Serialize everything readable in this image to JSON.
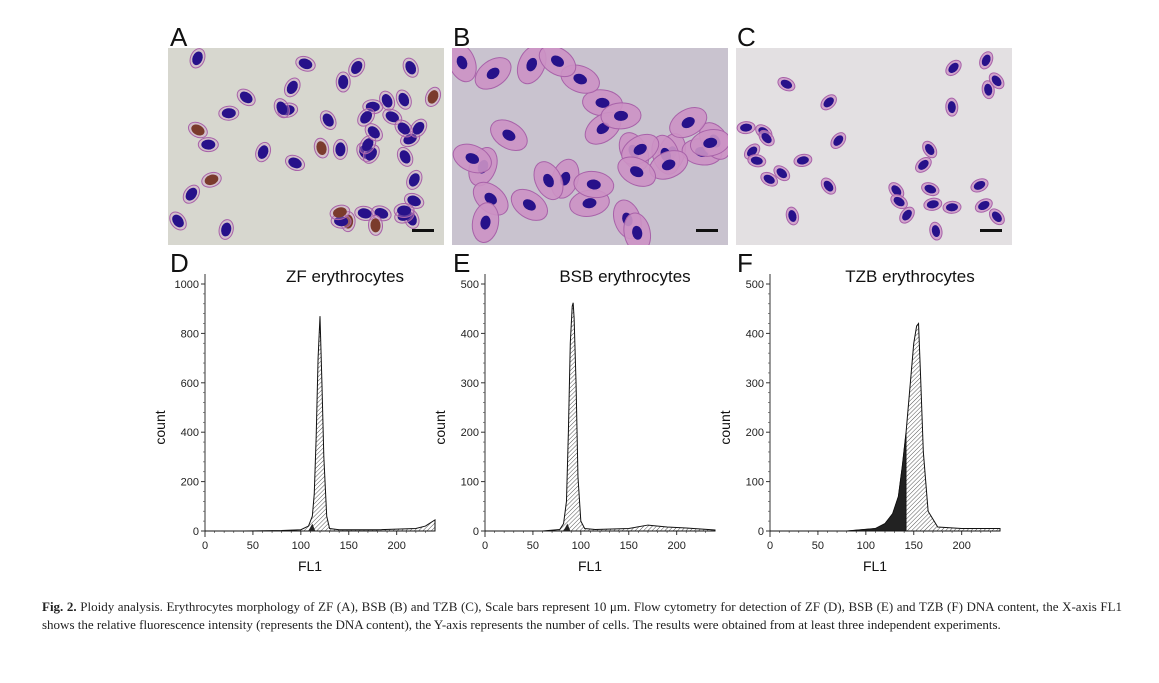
{
  "colors": {
    "bg_A": "#d7d7cf",
    "bg_B": "#c9c3cf",
    "bg_C": "#e3e0e2",
    "cell": "#a862a9",
    "cell_light": "#cc92c4",
    "nucleus": "#27118a",
    "nucleus_brown": "#7a3b2c",
    "hist_dark": "#222222"
  },
  "panels": [
    {
      "label": "A",
      "species": "ZF"
    },
    {
      "label": "B",
      "species": "BSB"
    },
    {
      "label": "C",
      "species": "TZB"
    }
  ],
  "chart_data": [
    {
      "type": "histogram",
      "panel": "D",
      "title": "ZF erythrocytes",
      "xlabel": "FL1",
      "ylabel": "count",
      "xlim": [
        0,
        240
      ],
      "ylim": [
        0,
        1000
      ],
      "xticks": [
        0,
        50,
        100,
        150,
        200
      ],
      "yticks": [
        0,
        200,
        400,
        600,
        800,
        1000
      ],
      "peak": {
        "x": 120,
        "y": 870
      },
      "x": [
        0,
        40,
        80,
        100,
        108,
        112,
        114,
        116,
        118,
        120,
        122,
        124,
        127,
        130,
        140,
        180,
        220,
        230,
        240
      ],
      "y": [
        0,
        0,
        2,
        5,
        20,
        60,
        150,
        380,
        700,
        870,
        600,
        300,
        60,
        10,
        5,
        5,
        10,
        20,
        45
      ]
    },
    {
      "type": "histogram",
      "panel": "E",
      "title": "BSB erythrocytes",
      "xlabel": "FL1",
      "ylabel": "count",
      "xlim": [
        0,
        240
      ],
      "ylim": [
        0,
        500
      ],
      "xticks": [
        0,
        50,
        100,
        150,
        200
      ],
      "yticks": [
        0,
        100,
        200,
        300,
        400,
        500
      ],
      "peak": {
        "x": 92,
        "y": 462
      },
      "x": [
        0,
        60,
        78,
        82,
        85,
        87,
        89,
        91,
        92,
        93,
        95,
        97,
        100,
        104,
        115,
        150,
        170,
        190,
        210,
        240
      ],
      "y": [
        0,
        0,
        3,
        15,
        60,
        200,
        380,
        455,
        462,
        430,
        300,
        110,
        20,
        5,
        3,
        5,
        12,
        8,
        6,
        2
      ]
    },
    {
      "type": "histogram",
      "panel": "F",
      "title": "TZB erythrocytes",
      "xlabel": "FL1",
      "ylabel": "count",
      "xlim": [
        0,
        240
      ],
      "ylim": [
        0,
        500
      ],
      "xticks": [
        0,
        50,
        100,
        150,
        200
      ],
      "yticks": [
        0,
        100,
        200,
        300,
        400,
        500
      ],
      "peak": {
        "x": 155,
        "y": 420
      },
      "x": [
        0,
        80,
        110,
        120,
        128,
        134,
        138,
        142,
        146,
        150,
        153,
        155,
        157,
        160,
        165,
        175,
        200,
        240
      ],
      "y": [
        0,
        0,
        5,
        15,
        35,
        70,
        130,
        200,
        290,
        380,
        415,
        420,
        320,
        160,
        40,
        8,
        5,
        5
      ],
      "dark_until": 142
    }
  ],
  "caption": {
    "label": "Fig. 2.",
    "text": "Ploidy analysis. Erythrocytes morphology of ZF (A), BSB (B) and TZB (C), Scale bars represent 10 μm. Flow cytometry for detection of ZF (D), BSB (E) and TZB (F) DNA content, the X-axis FL1 shows the relative fluorescence intensity (represents the DNA content), the Y-axis represents the number of cells. The results were obtained from at least three independent experiments."
  }
}
